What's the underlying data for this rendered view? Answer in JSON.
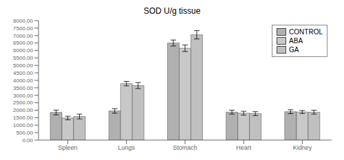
{
  "chart_data": {
    "type": "bar",
    "title": "SOD U/g tissue",
    "categories": [
      "Spleen",
      "Lungs",
      "Stomach",
      "Heart",
      "Kidney"
    ],
    "series": [
      {
        "name": "CONTROL",
        "color": "#b0b0b0",
        "values": [
          1850,
          1950,
          6500,
          1870,
          1900
        ],
        "errors": [
          160,
          150,
          200,
          130,
          130
        ]
      },
      {
        "name": "ABA",
        "color": "#c8c8c8",
        "values": [
          1480,
          3780,
          6150,
          1800,
          1880
        ],
        "errors": [
          120,
          150,
          220,
          130,
          100
        ]
      },
      {
        "name": "GA",
        "color": "#c0c0c0",
        "values": [
          1580,
          3650,
          7050,
          1770,
          1870
        ],
        "errors": [
          160,
          200,
          280,
          130,
          130
        ]
      }
    ],
    "ylim": [
      0,
      8000
    ],
    "yticks": [
      {
        "value": 0,
        "label": "0.00"
      },
      {
        "value": 500,
        "label": "500.00"
      },
      {
        "value": 1000,
        "label": "1000.00"
      },
      {
        "value": 1500,
        "label": "1500.00"
      },
      {
        "value": 2000,
        "label": "2000.00"
      },
      {
        "value": 2500,
        "label": "2500.00"
      },
      {
        "value": 3000,
        "label": "3000.00"
      },
      {
        "value": 3500,
        "label": "3500.00"
      },
      {
        "value": 4000,
        "label": "4000.00"
      },
      {
        "value": 4500,
        "label": "4500.00"
      },
      {
        "value": 5000,
        "label": "5000.00"
      },
      {
        "value": 5500,
        "label": "5500.00"
      },
      {
        "value": 6000,
        "label": "6000.00"
      },
      {
        "value": 6500,
        "label": "6500.00"
      },
      {
        "value": 7000,
        "label": "7000.00"
      },
      {
        "value": 7500,
        "label": "7500.00"
      },
      {
        "value": 8000,
        "label": "8000.00"
      }
    ],
    "grid": false,
    "legend": "upper right"
  }
}
